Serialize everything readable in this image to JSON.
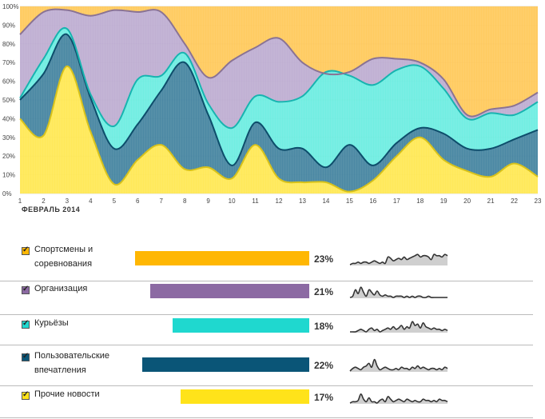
{
  "chart_data": {
    "type": "area",
    "stacked": "percent",
    "x": [
      1,
      2,
      3,
      4,
      5,
      6,
      7,
      8,
      9,
      10,
      11,
      12,
      13,
      14,
      15,
      16,
      17,
      18,
      19,
      20,
      21,
      22,
      23
    ],
    "x_caption": "ФЕВРАЛЬ 2014",
    "y_ticks": [
      "0%",
      "10%",
      "20%",
      "30%",
      "40%",
      "50%",
      "60%",
      "70%",
      "80%",
      "90%",
      "100%"
    ],
    "ylim": [
      0,
      100
    ],
    "series": [
      {
        "color": "#ffe74c",
        "cum": [
          40,
          31,
          68,
          33,
          5,
          18,
          26,
          13,
          14,
          8,
          26,
          8,
          6,
          6,
          1,
          7,
          20,
          30,
          18,
          12,
          9,
          16,
          9
        ]
      },
      {
        "color": "#3d7f9c",
        "cum": [
          50,
          64,
          85,
          51,
          24,
          37,
          55,
          70,
          42,
          15,
          38,
          24,
          24,
          14,
          26,
          15,
          27,
          35,
          32,
          24,
          24,
          29,
          34
        ]
      },
      {
        "color": "#66ede0",
        "cum": [
          51,
          72,
          88,
          53,
          36,
          61,
          63,
          75,
          48,
          35,
          52,
          49,
          52,
          65,
          63,
          58,
          66,
          68,
          56,
          40,
          43,
          42,
          49
        ]
      },
      {
        "color": "#bba9cf",
        "cum": [
          85,
          97,
          98,
          95,
          98,
          97,
          97,
          80,
          62,
          71,
          78,
          83,
          70,
          64,
          65,
          72,
          72,
          70,
          61,
          42,
          45,
          47,
          54
        ]
      },
      {
        "color": "#ffc754",
        "cum": [
          100,
          100,
          100,
          100,
          100,
          100,
          100,
          100,
          100,
          100,
          100,
          100,
          100,
          100,
          100,
          100,
          100,
          100,
          100,
          100,
          100,
          100,
          100
        ]
      }
    ],
    "grid": true
  },
  "legend": [
    {
      "label_lines": [
        "Спортсмены и",
        "соревнования"
      ],
      "color": "#ffb703",
      "value": 23,
      "pct": "23%",
      "spark": [
        10,
        9,
        9,
        8,
        9,
        8,
        8,
        9,
        8,
        7,
        8,
        9,
        8,
        9,
        4,
        5,
        7,
        6,
        5,
        6,
        4,
        6,
        5,
        4,
        3,
        2,
        4,
        3,
        3,
        4,
        6,
        2,
        3,
        3,
        4,
        2,
        3
      ]
    },
    {
      "label_lines": [
        "Организация"
      ],
      "color": "#8c6aa3",
      "value": 21,
      "pct": "21%",
      "spark": [
        10,
        9,
        4,
        7,
        2,
        6,
        9,
        4,
        6,
        8,
        5,
        8,
        9,
        8,
        9,
        9,
        10,
        9,
        9,
        9,
        10,
        9,
        10,
        9,
        10,
        9,
        9,
        10,
        10,
        9,
        10,
        10,
        10,
        10,
        10,
        10,
        10
      ]
    },
    {
      "label_lines": [
        "Курьёзы"
      ],
      "color": "#1fd8cf",
      "value": 18,
      "pct": "18%",
      "spark": [
        10,
        10,
        10,
        9,
        8,
        9,
        10,
        8,
        7,
        9,
        8,
        10,
        9,
        8,
        7,
        8,
        6,
        8,
        7,
        5,
        8,
        6,
        7,
        2,
        5,
        4,
        7,
        3,
        6,
        7,
        8,
        7,
        8,
        8,
        9,
        8,
        9
      ]
    },
    {
      "label_lines": [
        "Пользовательские",
        "впечатления"
      ],
      "color": "#0a5577",
      "value": 22,
      "pct": "22%",
      "spark": [
        10,
        8,
        7,
        8,
        9,
        7,
        6,
        4,
        7,
        1,
        6,
        9,
        8,
        7,
        8,
        9,
        9,
        8,
        9,
        7,
        8,
        8,
        9,
        7,
        8,
        6,
        8,
        7,
        8,
        9,
        8,
        8,
        9,
        8,
        9,
        7,
        8
      ]
    },
    {
      "label_lines": [
        "Прочие новости"
      ],
      "color": "#ffe31a",
      "value": 17,
      "pct": "17%",
      "spark": [
        10,
        9,
        9,
        8,
        3,
        7,
        9,
        6,
        9,
        9,
        10,
        8,
        7,
        9,
        5,
        7,
        9,
        8,
        7,
        8,
        9,
        7,
        8,
        9,
        8,
        9,
        9,
        7,
        8,
        8,
        9,
        8,
        9,
        7,
        8,
        8,
        9
      ]
    }
  ]
}
